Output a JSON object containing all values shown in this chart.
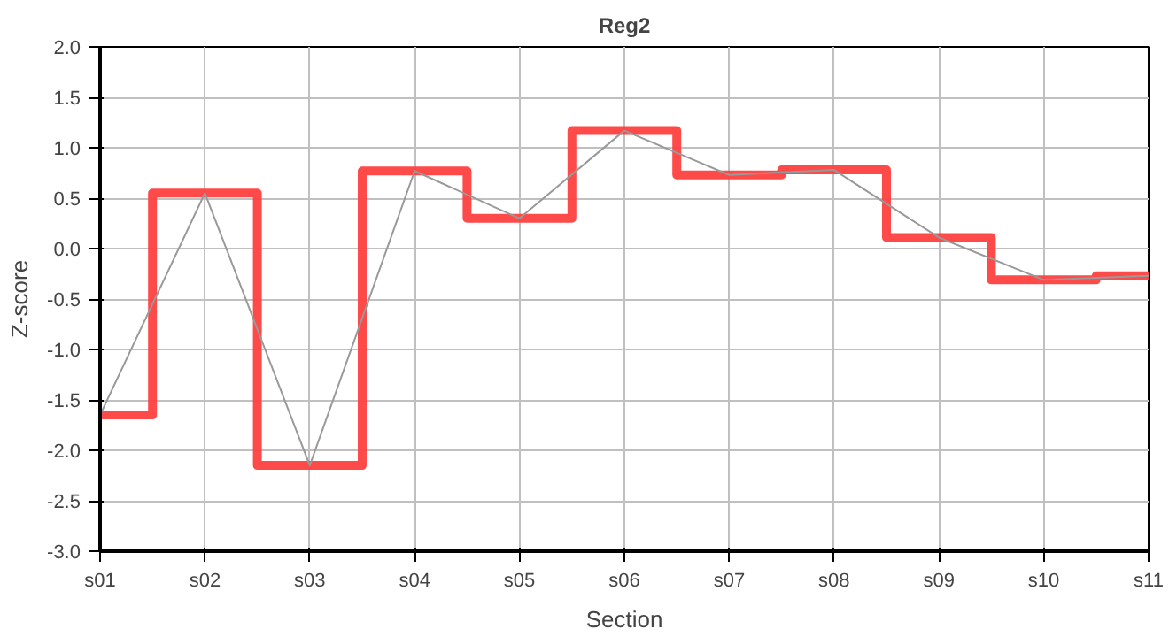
{
  "chart_data": {
    "type": "line",
    "title": "Reg2",
    "xlabel": "Section",
    "ylabel": "Z-score",
    "categories": [
      "s01",
      "s02",
      "s03",
      "s04",
      "s05",
      "s06",
      "s07",
      "s08",
      "s09",
      "s10",
      "s11"
    ],
    "series": [
      {
        "type": "step",
        "color": "#ff4040",
        "values": [
          -1.65,
          0.55,
          -2.15,
          0.77,
          0.3,
          1.17,
          0.73,
          0.78,
          0.11,
          -0.31,
          -0.27
        ]
      },
      {
        "color": "#999999",
        "values": [
          -1.65,
          0.55,
          -2.15,
          0.77,
          0.3,
          1.17,
          0.73,
          0.78,
          0.11,
          -0.31,
          -0.27
        ]
      }
    ],
    "ylim": [
      -3.0,
      2.0
    ],
    "yticks": [
      {
        "value": -3,
        "label": "-3.0"
      },
      {
        "value": -2.5,
        "label": "-2.5"
      },
      {
        "value": -2,
        "label": "-2.0"
      },
      {
        "value": -1.5,
        "label": "-1.5"
      },
      {
        "value": -1,
        "label": "-1.0"
      },
      {
        "value": -0.5,
        "label": "-0.5"
      },
      {
        "value": 0,
        "label": "0.0"
      },
      {
        "value": 0.5,
        "label": "0.5"
      },
      {
        "value": 1,
        "label": "1.0"
      },
      {
        "value": 1.5,
        "label": "1.5"
      },
      {
        "value": 2,
        "label": "2.0"
      }
    ],
    "grid": true,
    "marker": "none"
  }
}
